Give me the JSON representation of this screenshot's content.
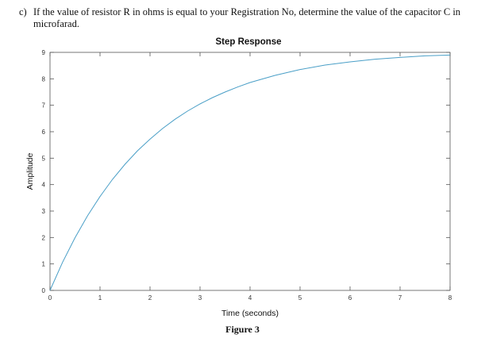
{
  "question": {
    "marker": "c)",
    "text": "If the value of resistor R in ohms is equal to your Registration No, determine the value of the capacitor C in microfarad."
  },
  "figure_caption": "Figure 3",
  "chart_data": {
    "type": "line",
    "title": "Step Response",
    "xlabel": "Time (seconds)",
    "ylabel": "Amplitude",
    "xlim": [
      0,
      8
    ],
    "ylim": [
      0,
      9
    ],
    "xticks": [
      "0",
      "1",
      "2",
      "3",
      "4",
      "5",
      "6",
      "7",
      "8"
    ],
    "yticks": [
      "0",
      "1",
      "2",
      "3",
      "4",
      "5",
      "6",
      "7",
      "8",
      "9"
    ],
    "grid": false,
    "line_color": "#4a9fc7",
    "series": [
      {
        "x": [
          0,
          0.25,
          0.5,
          0.75,
          1,
          1.25,
          1.5,
          1.75,
          2,
          2.25,
          2.5,
          2.75,
          3,
          3.25,
          3.5,
          3.75,
          4,
          4.5,
          5,
          5.5,
          6,
          6.5,
          7,
          7.5,
          8
        ],
        "y": [
          0,
          1.06,
          1.99,
          2.82,
          3.55,
          4.2,
          4.77,
          5.28,
          5.72,
          6.12,
          6.47,
          6.78,
          7.05,
          7.29,
          7.5,
          7.69,
          7.86,
          8.13,
          8.35,
          8.52,
          8.64,
          8.74,
          8.81,
          8.87,
          8.9
        ]
      }
    ]
  }
}
